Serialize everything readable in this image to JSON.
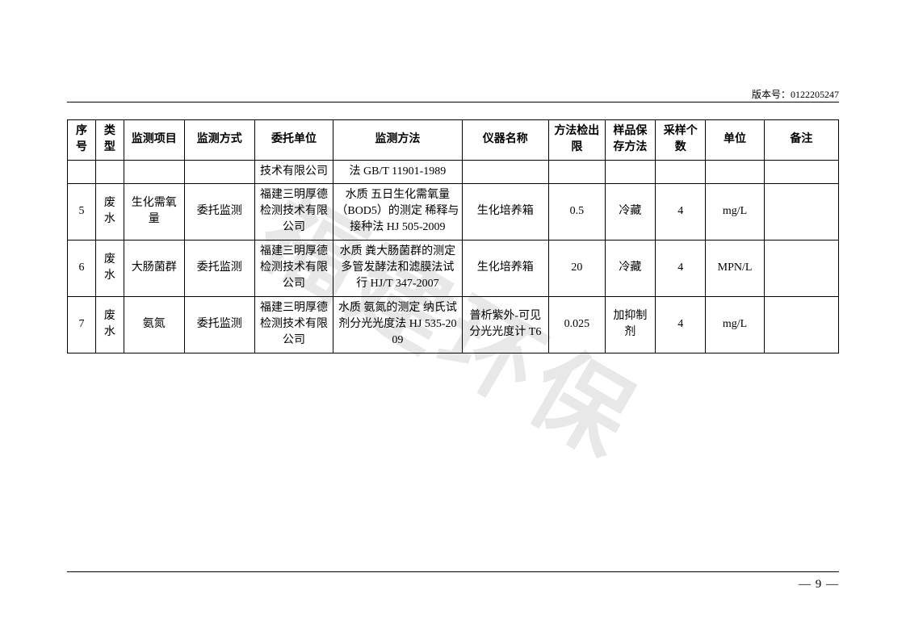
{
  "version_label": "版本号：",
  "version_number": "0122205247",
  "page_number": "— 9 —",
  "watermark_text": "福建环保",
  "table": {
    "columns": [
      "序号",
      "类型",
      "监测项目",
      "监测方式",
      "委托单位",
      "监测方法",
      "仪器名称",
      "方法检出限",
      "样品保存方法",
      "采样个数",
      "单位",
      "备注"
    ],
    "rows": [
      {
        "xh": "",
        "lx": "",
        "jcxm": "",
        "jcfs": "",
        "wtdw": "技术有限公司",
        "jcff": "法  GB/T 11901-1989",
        "yqmc": "",
        "jcx": "",
        "bc": "",
        "cygs": "",
        "dw": "",
        "bz": ""
      },
      {
        "xh": "5",
        "lx": "废水",
        "jcxm": "生化需氧量",
        "jcfs": "委托监测",
        "wtdw": "福建三明厚德检测技术有限公司",
        "jcff": "水质 五日生化需氧量（BOD5）的测定 稀释与接种法 HJ 505-2009",
        "yqmc": "生化培养箱",
        "jcx": "0.5",
        "bc": "冷藏",
        "cygs": "4",
        "dw": "mg/L",
        "bz": ""
      },
      {
        "xh": "6",
        "lx": "废水",
        "jcxm": "大肠菌群",
        "jcfs": "委托监测",
        "wtdw": "福建三明厚德检测技术有限公司",
        "jcff": "水质 粪大肠菌群的测定 多管发酵法和滤膜法试行 HJ/T 347-2007",
        "yqmc": "生化培养箱",
        "jcx": "20",
        "bc": "冷藏",
        "cygs": "4",
        "dw": "MPN/L",
        "bz": ""
      },
      {
        "xh": "7",
        "lx": "废水",
        "jcxm": "氨氮",
        "jcfs": "委托监测",
        "wtdw": "福建三明厚德检测技术有限公司",
        "jcff": "水质 氨氮的测定 纳氏试剂分光光度法 HJ 535-2009",
        "yqmc": "普析紫外-可见分光光度计 T6",
        "jcx": "0.025",
        "bc": "加抑制剂",
        "cygs": "4",
        "dw": "mg/L",
        "bz": ""
      }
    ]
  }
}
